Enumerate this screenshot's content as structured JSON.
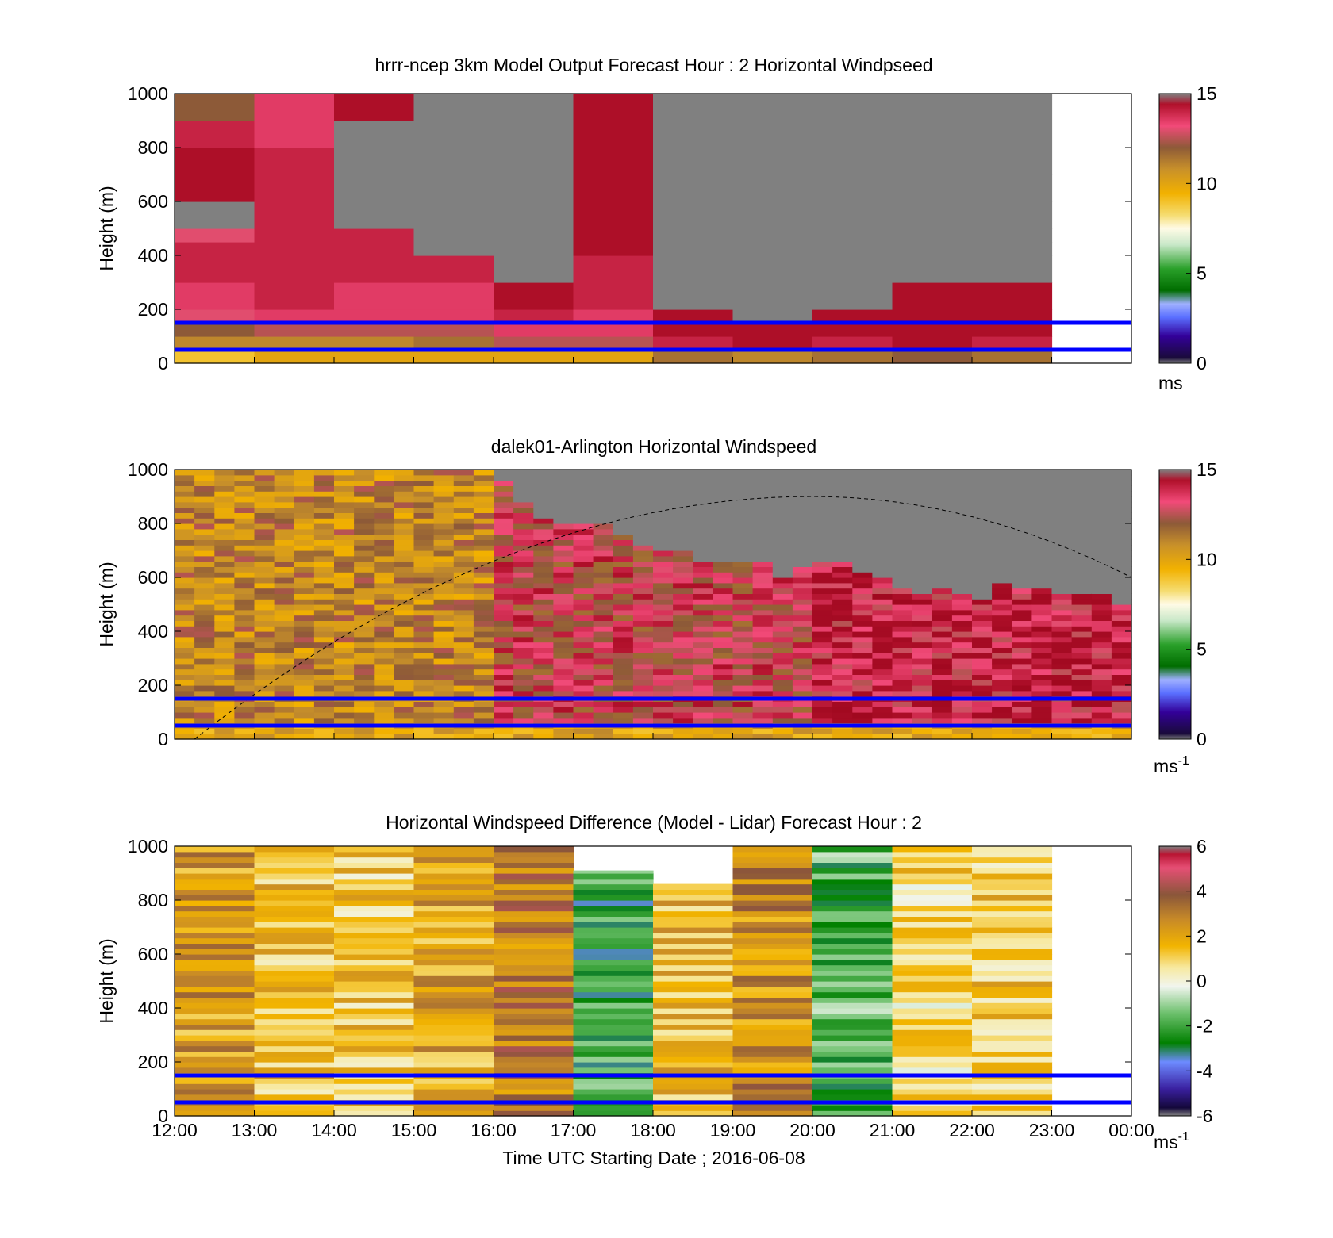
{
  "xaxis": {
    "label": "Time UTC  Starting Date ; 2016-06-08",
    "ticks": [
      "12:00",
      "13:00",
      "14:00",
      "15:00",
      "16:00",
      "17:00",
      "18:00",
      "19:00",
      "20:00",
      "21:00",
      "22:00",
      "23:00",
      "00:00"
    ]
  },
  "chart_data": [
    {
      "type": "heatmap",
      "title": "hrrr-ncep 3km Model Output   Forecast Hour : 2 Horizontal Windpseed",
      "ylabel": "Height (m)",
      "ylim": [
        0,
        1000
      ],
      "yticks": [
        "0",
        "200",
        "400",
        "600",
        "800",
        "1000"
      ],
      "colorbar": {
        "range": [
          0,
          15
        ],
        "ticks": [
          "0",
          "5",
          "10",
          "15"
        ],
        "unit": "ms",
        "unit_sup": ""
      },
      "x_hours": [
        "12:00",
        "13:00",
        "14:00",
        "15:00",
        "16:00",
        "17:00",
        "18:00",
        "19:00",
        "20:00",
        "21:00",
        "22:00"
      ],
      "value_layers_m": [
        0,
        50,
        100,
        150,
        200,
        300,
        400,
        450,
        500,
        600,
        700,
        800,
        900,
        1000
      ],
      "values_ms": [
        [
          9,
          11,
          12,
          13,
          13.5,
          14,
          14,
          13,
          null,
          14.5,
          14.5,
          14,
          12,
          12
        ],
        [
          10,
          11,
          12.5,
          13.5,
          14,
          14,
          14,
          14,
          14,
          14,
          14,
          13.5,
          13.5,
          12
        ],
        [
          10,
          11,
          12.5,
          13.5,
          13.5,
          14,
          14,
          14,
          null,
          null,
          null,
          null,
          14.5,
          12
        ],
        [
          10,
          11.5,
          12.5,
          13.5,
          13.5,
          14,
          null,
          null,
          null,
          null,
          null,
          null,
          null,
          null
        ],
        [
          10,
          12.5,
          13.5,
          14,
          14.5,
          null,
          null,
          null,
          null,
          null,
          null,
          null,
          null,
          null
        ],
        [
          10,
          12.5,
          13.5,
          13.5,
          14,
          14,
          14.5,
          14.5,
          14.5,
          14.5,
          14.5,
          14.5,
          14.5,
          14.5
        ],
        [
          11.5,
          14,
          14.5,
          14.5,
          null,
          null,
          null,
          null,
          null,
          null,
          null,
          null,
          null,
          null
        ],
        [
          11,
          14.5,
          14.5,
          null,
          null,
          null,
          null,
          null,
          null,
          null,
          null,
          null,
          null,
          null
        ],
        [
          11.5,
          14,
          14.5,
          14.5,
          null,
          null,
          null,
          null,
          null,
          null,
          null,
          null,
          null,
          null
        ],
        [
          12,
          14.5,
          14.5,
          14.5,
          14.5,
          null,
          null,
          null,
          null,
          null,
          null,
          null,
          null,
          null
        ],
        [
          11.5,
          14,
          14.5,
          14.5,
          14.5,
          null,
          null,
          null,
          null,
          null,
          null,
          null,
          null,
          null
        ]
      ],
      "reference_lines_m": [
        50,
        150
      ]
    },
    {
      "type": "heatmap",
      "title": "dalek01-Arlington  Horizontal Windspeed",
      "ylabel": "Height (m)",
      "ylim": [
        0,
        1000
      ],
      "yticks": [
        "0",
        "200",
        "400",
        "600",
        "800",
        "1000"
      ],
      "colorbar": {
        "range": [
          0,
          15
        ],
        "ticks": [
          "0",
          "5",
          "10",
          "15"
        ],
        "unit": "ms",
        "unit_sup": "-1"
      },
      "profile_interval_min": 15,
      "description_of_values": "profiles of lidar-measured horizontal windspeed; grey = no data above cloud/range limit",
      "max_range_m": [
        1000,
        1000,
        1000,
        1000,
        1000,
        1000,
        1000,
        1000,
        1000,
        1000,
        1000,
        1000,
        1000,
        1000,
        1000,
        1000,
        950,
        870,
        820,
        800,
        800,
        800,
        760,
        720,
        700,
        700,
        650,
        650,
        650,
        660,
        600,
        640,
        660,
        650,
        620,
        600,
        560,
        540,
        550,
        540,
        520,
        580,
        560,
        560,
        540,
        540,
        540,
        500,
        500,
        820,
        720,
        700,
        650,
        660,
        640,
        600,
        550,
        520,
        480,
        450,
        440,
        650,
        800,
        1000
      ],
      "reference_lines_m": [
        50,
        150
      ],
      "dashed_curve": {
        "peak_time_hours": 8,
        "peak_m": 900,
        "start_m": 0,
        "end_m": 600
      }
    },
    {
      "type": "heatmap",
      "title": "Horizontal Windspeed Difference (Model - Lidar) Forecast Hour : 2",
      "ylabel": "Height (m)",
      "ylim": [
        0,
        1000
      ],
      "yticks": [
        "0",
        "200",
        "400",
        "600",
        "800",
        "1000"
      ],
      "colorbar": {
        "range": [
          -6,
          6
        ],
        "ticks": [
          "-6",
          "-4",
          "-2",
          "0",
          "2",
          "4",
          "6"
        ],
        "unit": "ms",
        "unit_sup": "-1"
      },
      "x_hours": [
        "12:00",
        "13:00",
        "14:00",
        "15:00",
        "16:00",
        "17:00",
        "18:00",
        "19:00",
        "20:00",
        "21:00",
        "22:00"
      ],
      "column_top_m": [
        1000,
        1000,
        1000,
        1000,
        1000,
        910,
        860,
        1000,
        1000,
        1000,
        1000
      ],
      "mean_difference_ms": [
        2.2,
        1.4,
        1.2,
        2.0,
        3.0,
        -2.2,
        1.6,
        2.6,
        -1.8,
        0.8,
        1.2
      ],
      "reference_lines_m": [
        50,
        150
      ]
    }
  ]
}
